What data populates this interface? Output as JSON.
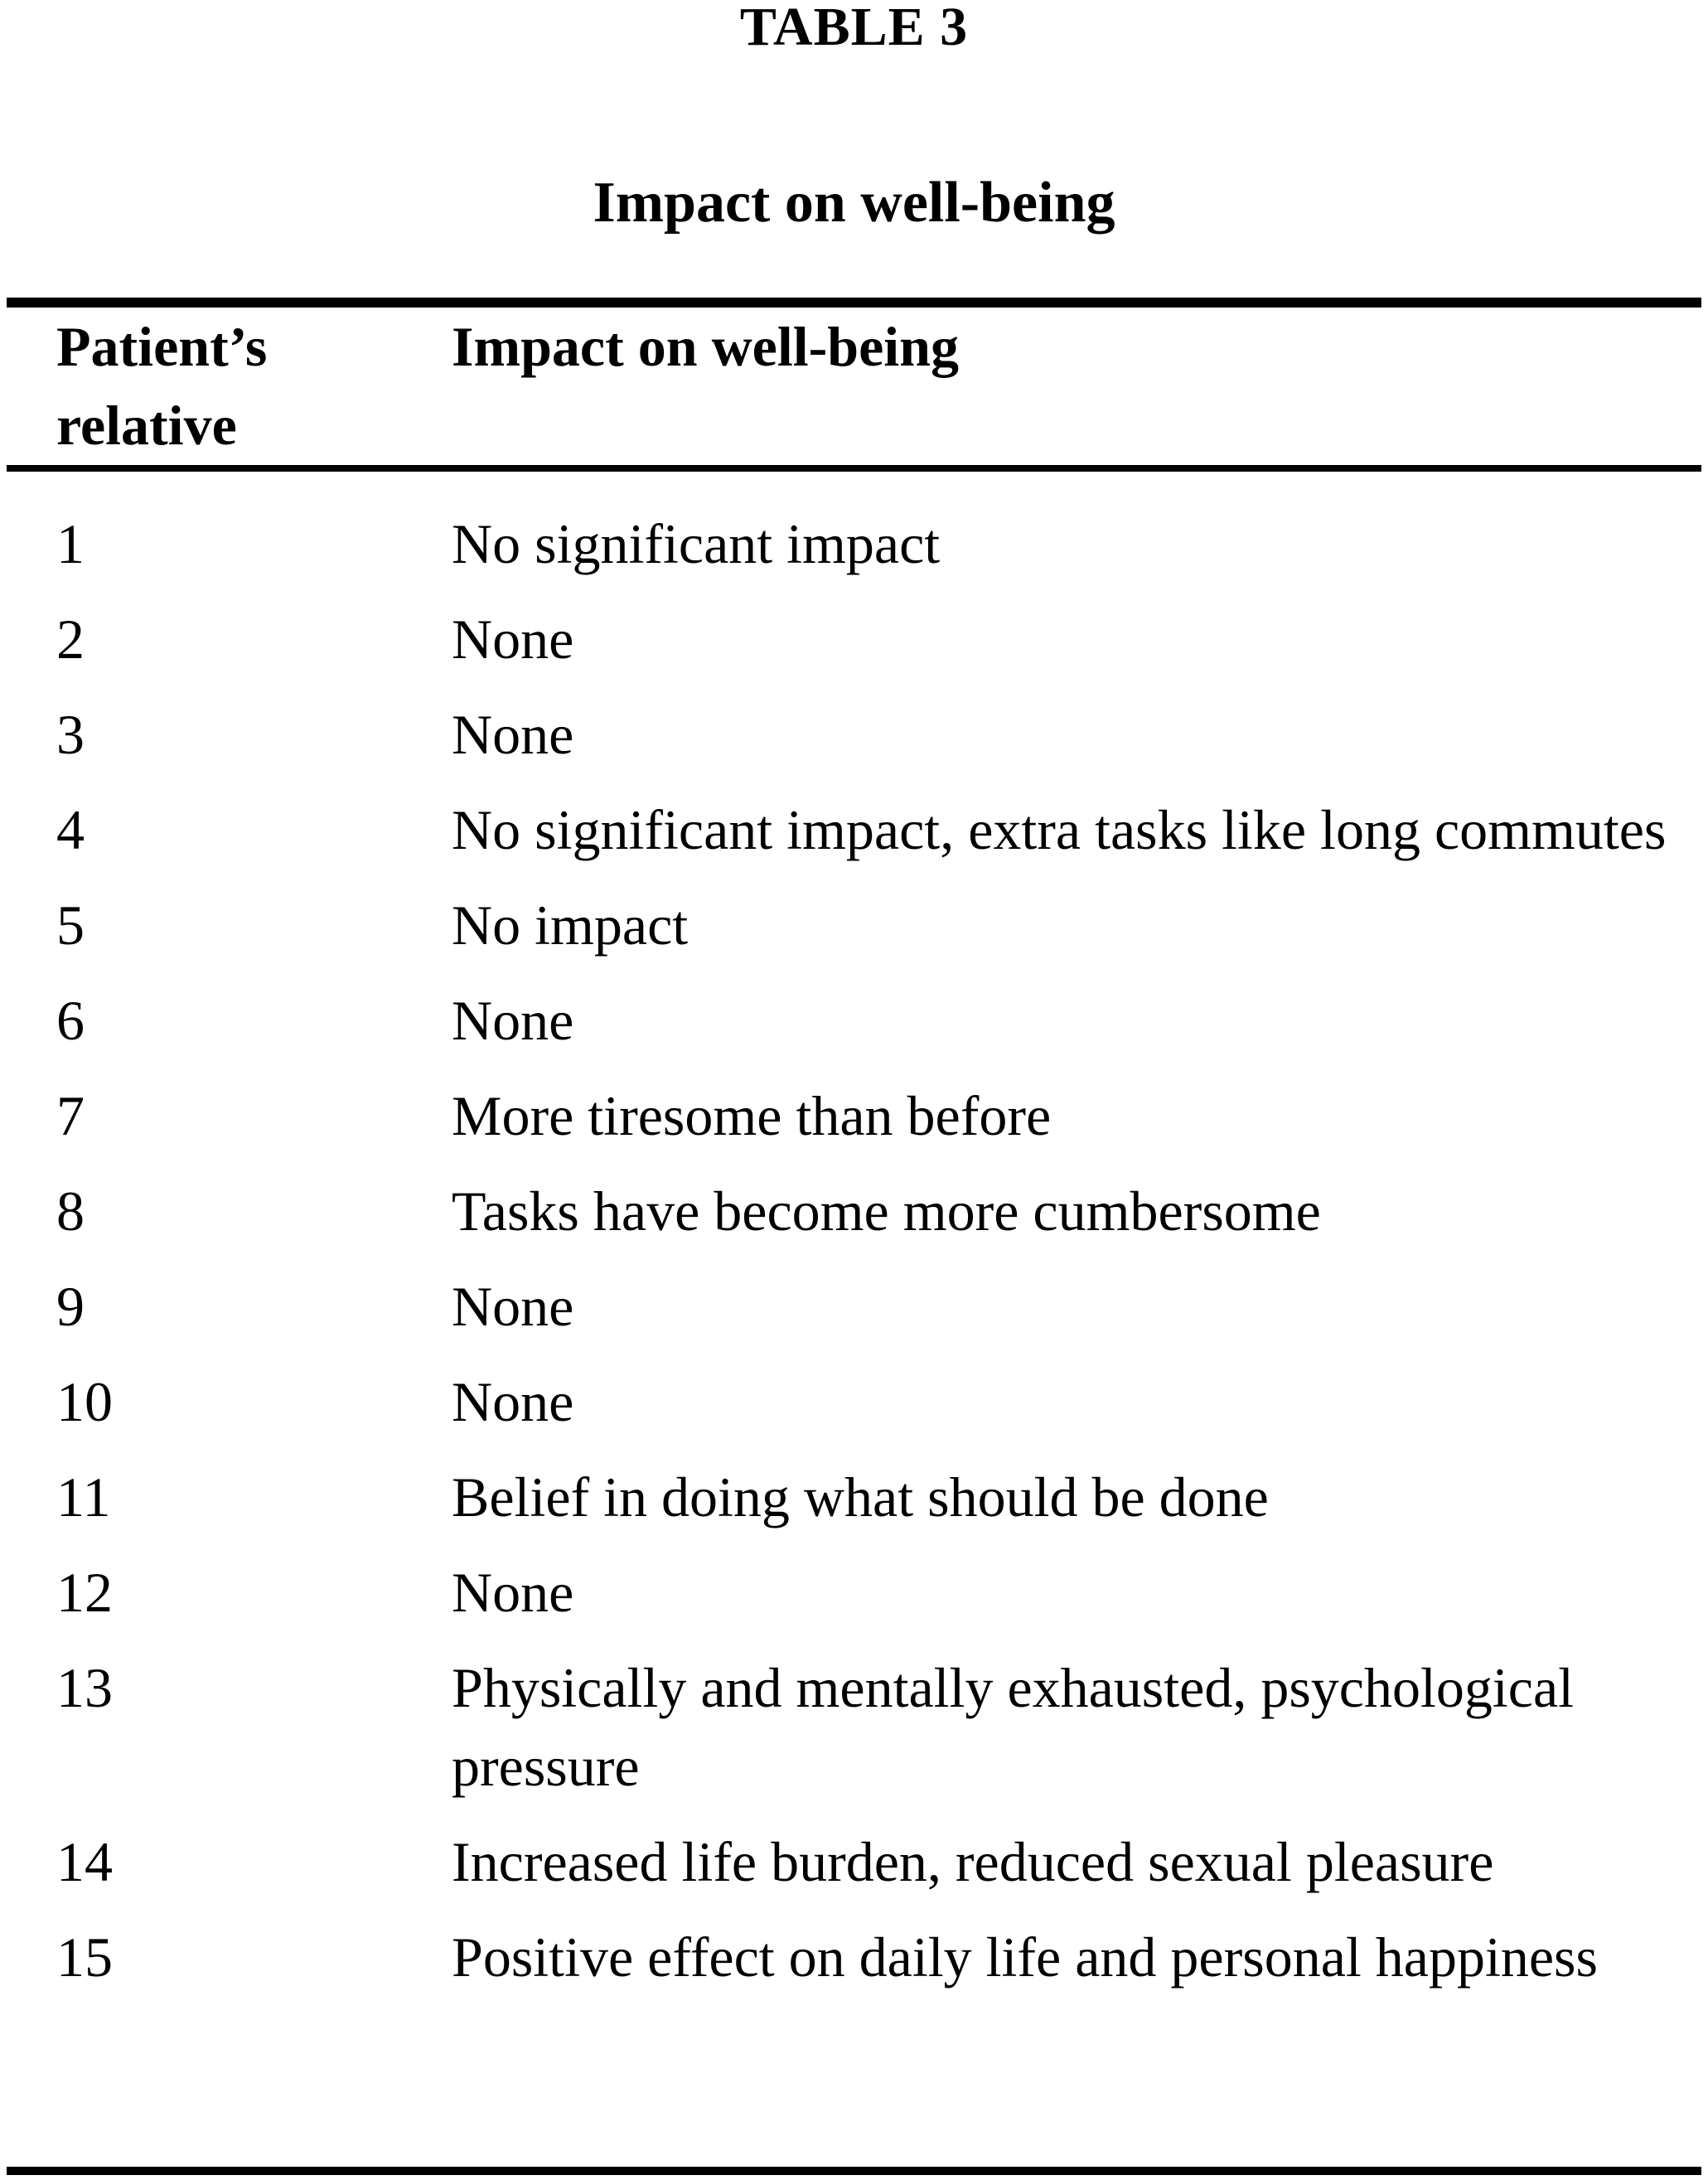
{
  "page": {
    "label": "TABLE 3",
    "title": "Impact on well-being",
    "text_color": "#000000",
    "background_color": "#ffffff"
  },
  "table": {
    "columns": [
      {
        "label": "Patient’s relative"
      },
      {
        "label": "Impact on well-being"
      }
    ],
    "rows": [
      {
        "relative": "1",
        "impact": "No significant impact"
      },
      {
        "relative": "2",
        "impact": "None"
      },
      {
        "relative": "3",
        "impact": "None"
      },
      {
        "relative": "4",
        "impact": "No significant impact, extra tasks like long commutes"
      },
      {
        "relative": "5",
        "impact": "No impact"
      },
      {
        "relative": "6",
        "impact": "None"
      },
      {
        "relative": "7",
        "impact": "More tiresome than before"
      },
      {
        "relative": "8",
        "impact": "Tasks have become more cumbersome"
      },
      {
        "relative": "9",
        "impact": "None"
      },
      {
        "relative": "10",
        "impact": "None"
      },
      {
        "relative": "11",
        "impact": "Belief in doing what should be done"
      },
      {
        "relative": "12",
        "impact": "None"
      },
      {
        "relative": "13",
        "impact": "Physically and mentally exhausted, psychological pressure"
      },
      {
        "relative": "14",
        "impact": "Increased life burden, reduced sexual pleasure"
      },
      {
        "relative": "15",
        "impact": "Positive effect on daily life and personal happiness"
      }
    ]
  }
}
